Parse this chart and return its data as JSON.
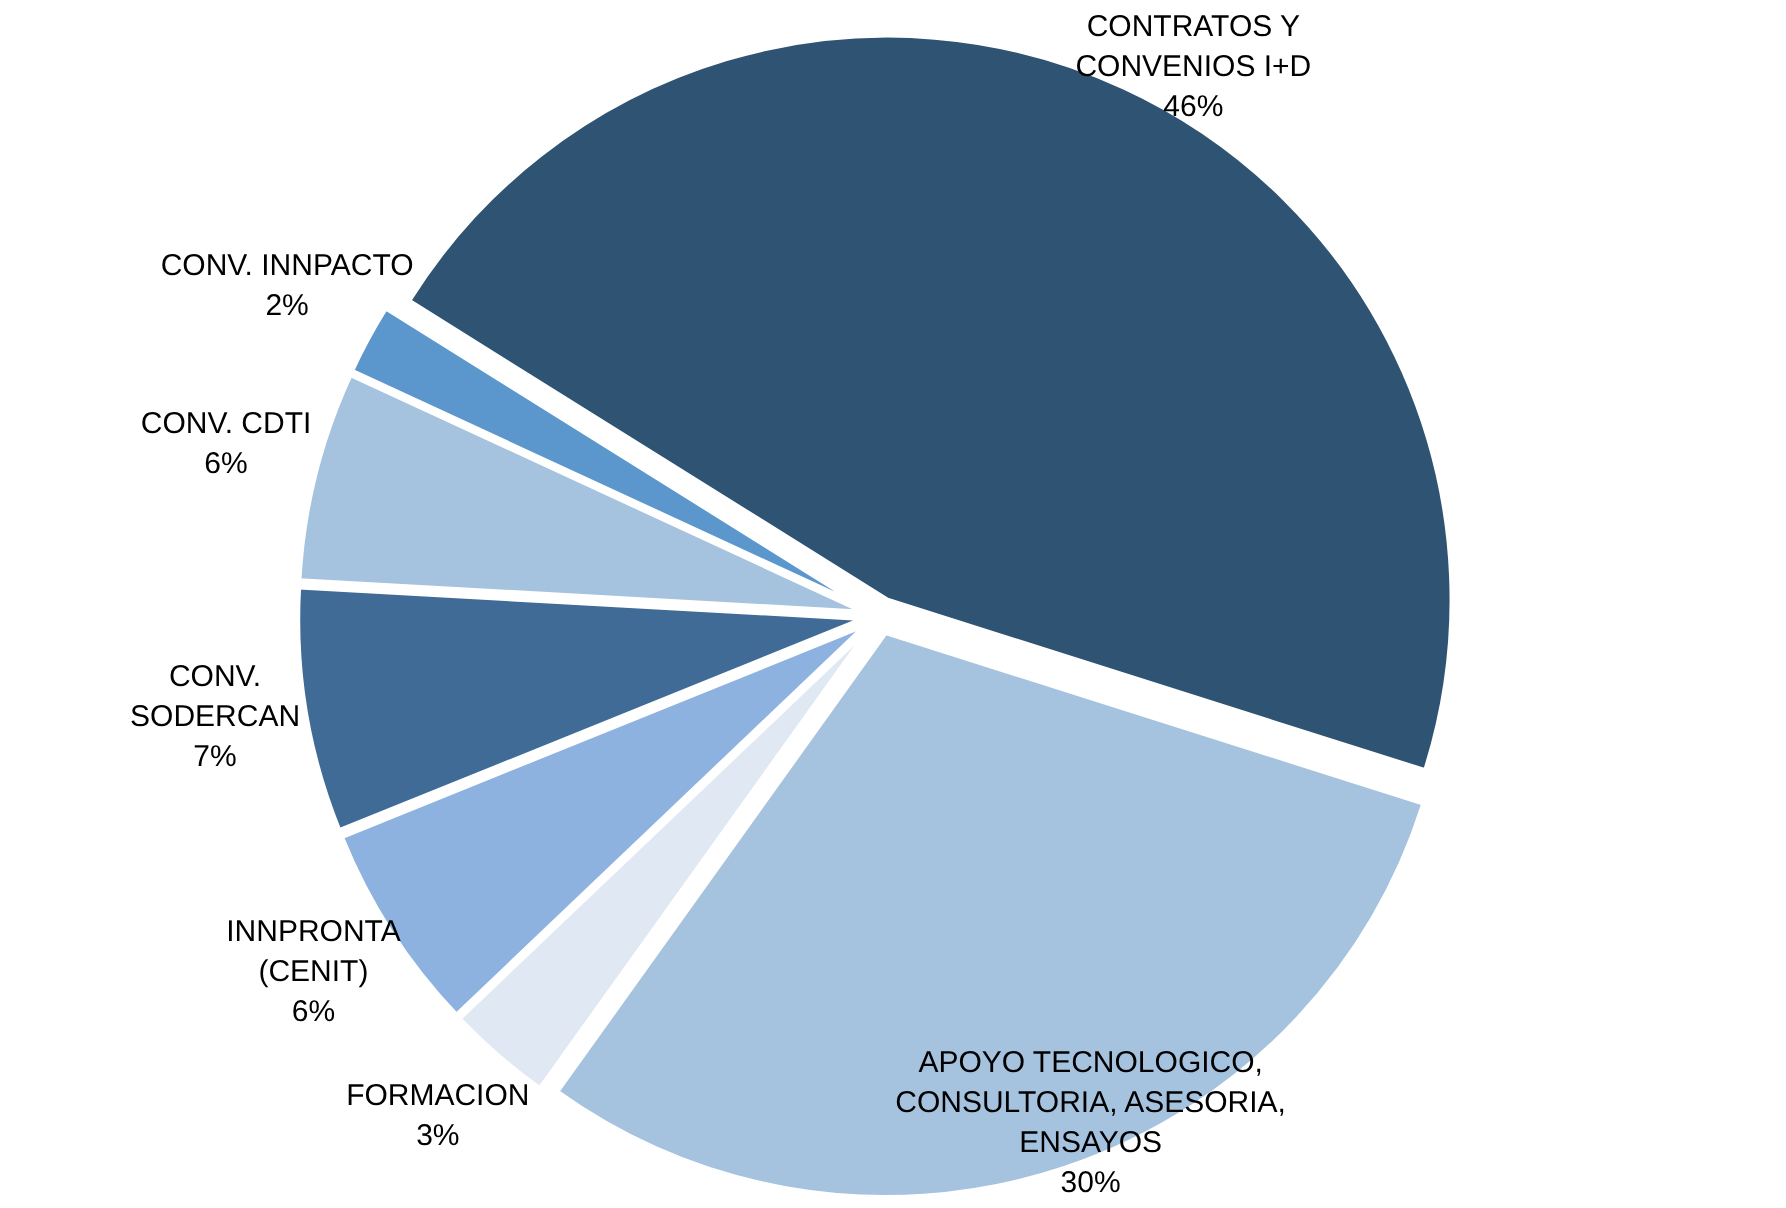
{
  "chart_data": {
    "type": "pie",
    "categories": [
      "CONTRATOS Y CONVENIOS I+D",
      "APOYO TECNOLOGICO, CONSULTORIA, ASESORIA, ENSAYOS",
      "FORMACION",
      "INNPRONTA (CENIT)",
      "CONV. SODERCAN",
      "CONV. CDTI",
      "CONV. INNPACTO"
    ],
    "values": [
      46,
      30,
      3,
      6,
      7,
      6,
      2
    ],
    "value_labels": [
      "46%",
      "30%",
      "3%",
      "6%",
      "7%",
      "6%",
      "2%"
    ],
    "colors": [
      "#2f5372",
      "#a5c2de",
      "#dfe8f3",
      "#8eb2e0",
      "#3f6b96",
      "#a5c2de",
      "#5b97cc"
    ]
  }
}
